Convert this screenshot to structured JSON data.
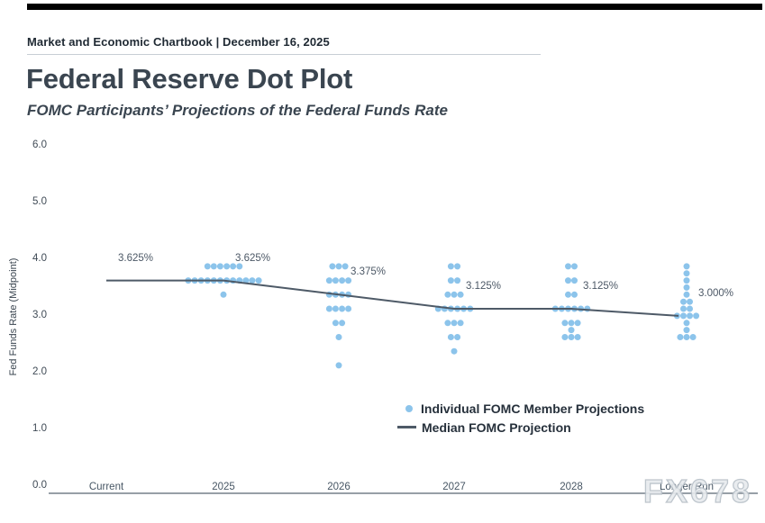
{
  "header": {
    "text": "Market and Economic Chartbook | December 16, 2025"
  },
  "title": "Federal Reserve Dot Plot",
  "subtitle": "FOMC Participants’ Projections of the Federal Funds Rate",
  "watermark": "FX678",
  "legend": [
    {
      "swatch": "dot",
      "label": "Individual FOMC Member Projections"
    },
    {
      "swatch": "line",
      "label": "Median FOMC Projection"
    }
  ],
  "colors": {
    "dot": "#8cc4eb",
    "median_line": "#4e5a67",
    "heading_text": "#3a4550",
    "axis_text": "#475664",
    "watermark": "#ccd3d9",
    "top_bar": "#000000"
  },
  "chart_data": {
    "type": "scatter",
    "title": "Federal Reserve Dot Plot",
    "subtitle": "FOMC Participants’ Projections of the Federal Funds Rate",
    "ylabel": "Fed Funds Rate (Midpoint)",
    "xlabel": "",
    "ylim": [
      0.0,
      6.0
    ],
    "yticks": [
      "6.0",
      "5.0",
      "4.0",
      "3.0",
      "2.0",
      "1.0",
      "0.0"
    ],
    "grid": false,
    "legend_position": "lower-right-of-center",
    "categories": [
      "Current",
      "2025",
      "2026",
      "2027",
      "2028",
      "Longer Run"
    ],
    "median_series": {
      "name": "Median FOMC Projection",
      "values": [
        3.625,
        3.625,
        3.375,
        3.125,
        3.125,
        3.0
      ],
      "labels": [
        "3.625%",
        "3.625%",
        "3.375%",
        "3.125%",
        "3.125%",
        "3.000%"
      ]
    },
    "dot_series": {
      "name": "Individual FOMC Member Projections",
      "columns": [
        {
          "category": "2025",
          "distribution": [
            [
              3.875,
              6
            ],
            [
              3.625,
              12
            ],
            [
              3.375,
              1
            ]
          ]
        },
        {
          "category": "2026",
          "distribution": [
            [
              3.875,
              3
            ],
            [
              3.625,
              4
            ],
            [
              3.375,
              4
            ],
            [
              3.125,
              4
            ],
            [
              2.875,
              2
            ],
            [
              2.625,
              1
            ],
            [
              2.125,
              1
            ]
          ]
        },
        {
          "category": "2027",
          "distribution": [
            [
              3.875,
              2
            ],
            [
              3.625,
              2
            ],
            [
              3.375,
              3
            ],
            [
              3.125,
              6
            ],
            [
              2.875,
              3
            ],
            [
              2.625,
              2
            ],
            [
              2.375,
              1
            ]
          ]
        },
        {
          "category": "2028",
          "distribution": [
            [
              3.875,
              2
            ],
            [
              3.625,
              2
            ],
            [
              3.375,
              2
            ],
            [
              3.125,
              6
            ],
            [
              2.875,
              3
            ],
            [
              2.75,
              1
            ],
            [
              2.625,
              3
            ]
          ]
        },
        {
          "category": "Longer Run",
          "distribution": [
            [
              3.875,
              1
            ],
            [
              3.75,
              1
            ],
            [
              3.625,
              1
            ],
            [
              3.5,
              1
            ],
            [
              3.375,
              1
            ],
            [
              3.25,
              2
            ],
            [
              3.125,
              2
            ],
            [
              3.0,
              4
            ],
            [
              2.875,
              1
            ],
            [
              2.75,
              1
            ],
            [
              2.625,
              3
            ]
          ]
        }
      ]
    }
  }
}
